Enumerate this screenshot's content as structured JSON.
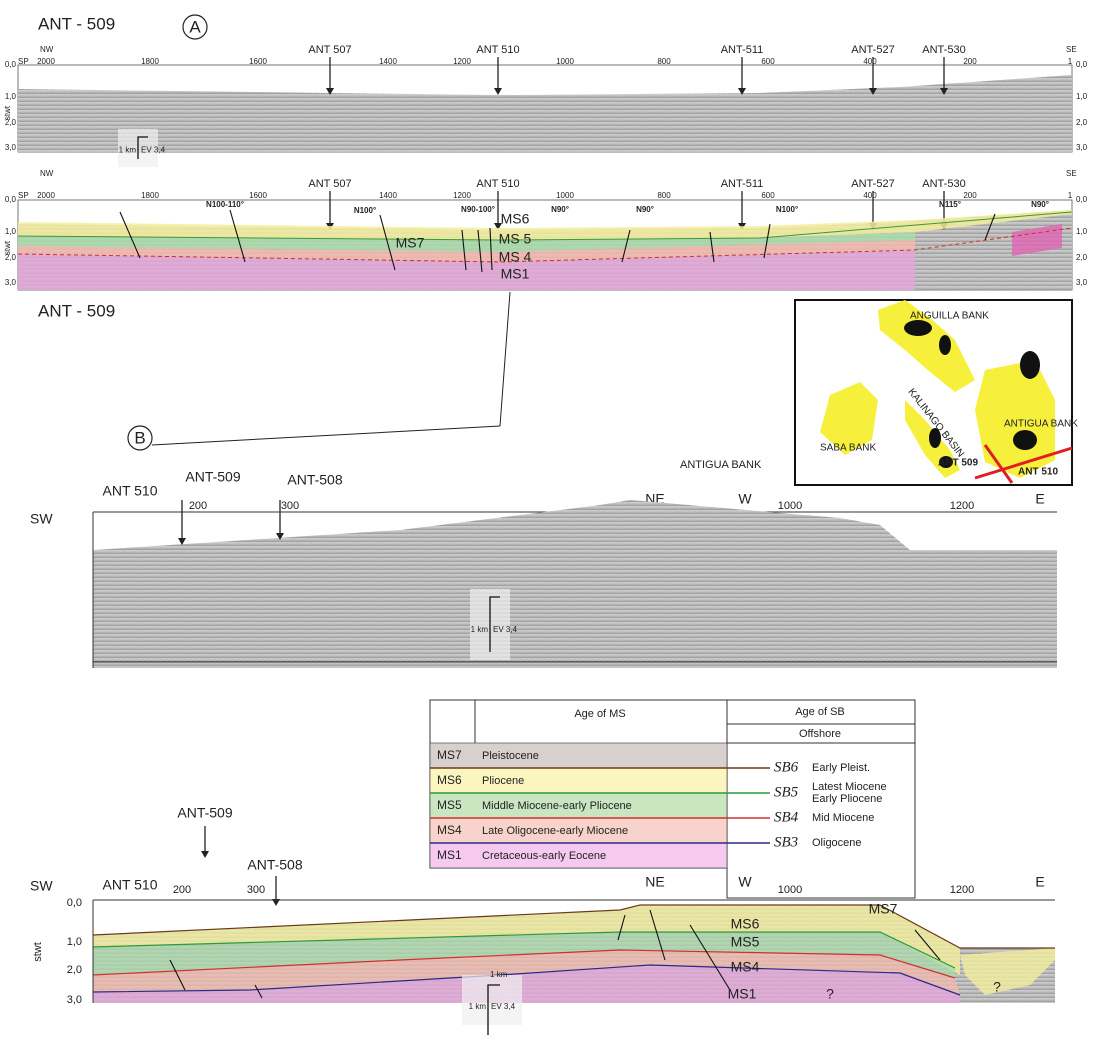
{
  "panel_a": {
    "label": "A",
    "line_top": "ANT - 509",
    "line_bottom": "ANT - 509",
    "nw": "NW",
    "se": "SE",
    "sp": "SP",
    "shotpoints": [
      "2000",
      "1800",
      "1600",
      "1400",
      "1200",
      "1000",
      "800",
      "600",
      "400",
      "200",
      "1"
    ],
    "twt_ticks": [
      "0,0",
      "1,0",
      "2,0",
      "3,0"
    ],
    "twt_unit": "stwt",
    "crossings": [
      "ANT 507",
      "ANT 510",
      "ANT-511",
      "ANT-527",
      "ANT-530"
    ],
    "strikes": [
      "N100-110°",
      "N100°",
      "N90-100°",
      "N90°",
      "N90°",
      "N100°",
      "N115°",
      "N90°"
    ],
    "units": [
      "MS7",
      "MS6",
      "MS 5",
      "MS 4",
      "MS1"
    ],
    "scale": {
      "km": "1 km",
      "ev": "EV 3,4"
    }
  },
  "map": {
    "labels": [
      "ANGUILLA  BANK",
      "KALINAGO BASIN",
      "SABA BANK",
      "ANTIGUA BANK",
      "ANT 509",
      "ANT 510"
    ]
  },
  "panel_b": {
    "label": "B",
    "area": "ANTIGUA BANK",
    "sw": "SW",
    "ne": "NE",
    "w": "W",
    "e": "E",
    "crossings": [
      "ANT 510",
      "ANT-509",
      "ANT-508"
    ],
    "shotpoints": [
      "200",
      "300",
      "1000",
      "1200"
    ],
    "scale": {
      "km": "1 km",
      "ev": "EV 3,4"
    }
  },
  "legend": {
    "header_ms": "Age of MS",
    "header_sb": "Age of SB",
    "offshore": "Offshore",
    "rows": [
      [
        "MS7",
        "Pleistocene"
      ],
      [
        "MS6",
        "Pliocene"
      ],
      [
        "MS5",
        "Middle Miocene-early Pliocene"
      ],
      [
        "MS4",
        "Late Oligocene-early Miocene"
      ],
      [
        "MS1",
        "Cretaceous-early Eocene"
      ]
    ],
    "boundaries": [
      [
        "SB6",
        "Early Pleist."
      ],
      [
        "SB5",
        "Latest Miocene",
        "Early Pliocene"
      ],
      [
        "SB4",
        "Mid Miocene"
      ],
      [
        "SB3",
        "Oligocene"
      ]
    ]
  },
  "panel_c": {
    "sw": "SW",
    "ne": "NE",
    "w": "W",
    "e": "E",
    "crossings": [
      "ANT 510",
      "ANT-509",
      "ANT-508"
    ],
    "shotpoints": [
      "200",
      "300",
      "1000",
      "1200"
    ],
    "twt_ticks": [
      "0,0",
      "1,0",
      "2,0",
      "3,0"
    ],
    "twt_unit": "stwt",
    "units": [
      "MS6",
      "MS5",
      "MS4",
      "MS1",
      "MS7"
    ],
    "unknown": "?",
    "scale": {
      "km": "1 km",
      "ev": "EV 3,4",
      "km2": "1 km"
    }
  }
}
